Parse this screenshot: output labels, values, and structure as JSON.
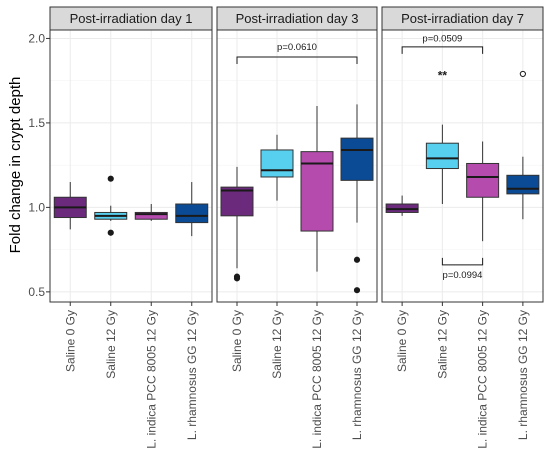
{
  "chart_data": {
    "type": "boxplot",
    "ylabel": "Fold change in crypt depth",
    "ylim": [
      0.44,
      2.05
    ],
    "yticks": [
      "0.5",
      "1.0",
      "1.5",
      "2.0"
    ],
    "yticks_values": [
      0.5,
      1.0,
      1.5,
      2.0
    ],
    "grid": true,
    "categories": [
      "Saline 0 Gy",
      "Saline 12 Gy",
      "L. indica PCC 8005 12 Gy",
      "L. rhamnosus GG 12 Gy"
    ],
    "colors": [
      "#6B2A7C",
      "#57D0F0",
      "#B54BAD",
      "#0B4A94"
    ],
    "panels": [
      {
        "title": "Post-irradiation day 1",
        "boxes": [
          {
            "q1": 0.94,
            "median": 1.0,
            "q3": 1.06,
            "whisker_low": 0.87,
            "whisker_high": 1.15,
            "outliers": []
          },
          {
            "q1": 0.93,
            "median": 0.95,
            "q3": 0.97,
            "whisker_low": 0.92,
            "whisker_high": 1.01,
            "outliers": [
              1.17,
              0.85
            ]
          },
          {
            "q1": 0.93,
            "median": 0.96,
            "q3": 0.97,
            "whisker_low": 0.92,
            "whisker_high": 1.02,
            "outliers": []
          },
          {
            "q1": 0.91,
            "median": 0.95,
            "q3": 1.02,
            "whisker_low": 0.83,
            "whisker_high": 1.15,
            "outliers": []
          }
        ],
        "annotations": []
      },
      {
        "title": "Post-irradiation day 3",
        "boxes": [
          {
            "q1": 0.95,
            "median": 1.1,
            "q3": 1.12,
            "whisker_low": 0.64,
            "whisker_high": 1.24,
            "outliers": [
              0.58,
              0.59
            ]
          },
          {
            "q1": 1.18,
            "median": 1.22,
            "q3": 1.34,
            "whisker_low": 1.04,
            "whisker_high": 1.43,
            "outliers": []
          },
          {
            "q1": 0.86,
            "median": 1.26,
            "q3": 1.33,
            "whisker_low": 0.62,
            "whisker_high": 1.6,
            "outliers": []
          },
          {
            "q1": 1.16,
            "median": 1.34,
            "q3": 1.41,
            "whisker_low": 0.91,
            "whisker_high": 1.61,
            "outliers": [
              0.69,
              0.51
            ]
          }
        ],
        "annotations": [
          {
            "text": "p=0.0610",
            "from": 0,
            "to": 3,
            "y": 1.89,
            "text_y": 1.95,
            "direction": "down"
          }
        ]
      },
      {
        "title": "Post-irradiation day 7",
        "boxes": [
          {
            "q1": 0.97,
            "median": 0.99,
            "q3": 1.02,
            "whisker_low": 0.95,
            "whisker_high": 1.07,
            "outliers": []
          },
          {
            "q1": 1.23,
            "median": 1.29,
            "q3": 1.38,
            "whisker_low": 1.02,
            "whisker_high": 1.49,
            "outliers": []
          },
          {
            "q1": 1.06,
            "median": 1.18,
            "q3": 1.26,
            "whisker_low": 0.8,
            "whisker_high": 1.39,
            "outliers": []
          },
          {
            "q1": 1.08,
            "median": 1.11,
            "q3": 1.19,
            "whisker_low": 0.93,
            "whisker_high": 1.3,
            "outliers": [
              1.79
            ]
          }
        ],
        "annotations": [
          {
            "text": "p=0.0509",
            "from": 0,
            "to": 2,
            "y": 1.95,
            "text_y": 2.0,
            "direction": "down"
          },
          {
            "text": "**",
            "at": 1,
            "y": 1.78,
            "kind": "star"
          },
          {
            "text": "p=0.0994",
            "from": 1,
            "to": 2,
            "y": 0.66,
            "text_y": 0.6,
            "direction": "up"
          }
        ]
      }
    ]
  }
}
